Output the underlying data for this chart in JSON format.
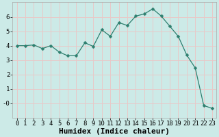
{
  "x": [
    0,
    1,
    2,
    3,
    4,
    5,
    6,
    7,
    8,
    9,
    10,
    11,
    12,
    13,
    14,
    15,
    16,
    17,
    18,
    19,
    20,
    21,
    22,
    23
  ],
  "y": [
    4.0,
    4.0,
    4.05,
    3.8,
    4.0,
    3.55,
    3.3,
    3.3,
    4.2,
    3.95,
    5.1,
    4.65,
    5.6,
    5.4,
    6.05,
    6.2,
    6.55,
    6.05,
    5.35,
    4.65,
    3.35,
    2.45,
    -0.15,
    -0.35
  ],
  "line_color": "#2e7f6f",
  "marker": "D",
  "marker_size": 2.5,
  "bg_color": "#cceae7",
  "grid_color": "#e8c8c8",
  "xlabel": "Humidex (Indice chaleur)",
  "xlim": [
    -0.5,
    23.5
  ],
  "ylim": [
    -1.0,
    7.0
  ],
  "yticks": [
    0,
    1,
    2,
    3,
    4,
    5,
    6
  ],
  "ytick_labels": [
    "-0",
    "1",
    "2",
    "3",
    "4",
    "5",
    "6"
  ],
  "xticks": [
    0,
    1,
    2,
    3,
    4,
    5,
    6,
    7,
    8,
    9,
    10,
    11,
    12,
    13,
    14,
    15,
    16,
    17,
    18,
    19,
    20,
    21,
    22,
    23
  ],
  "axis_fontsize": 7.5,
  "tick_fontsize": 6.5,
  "xlabel_fontsize": 8
}
